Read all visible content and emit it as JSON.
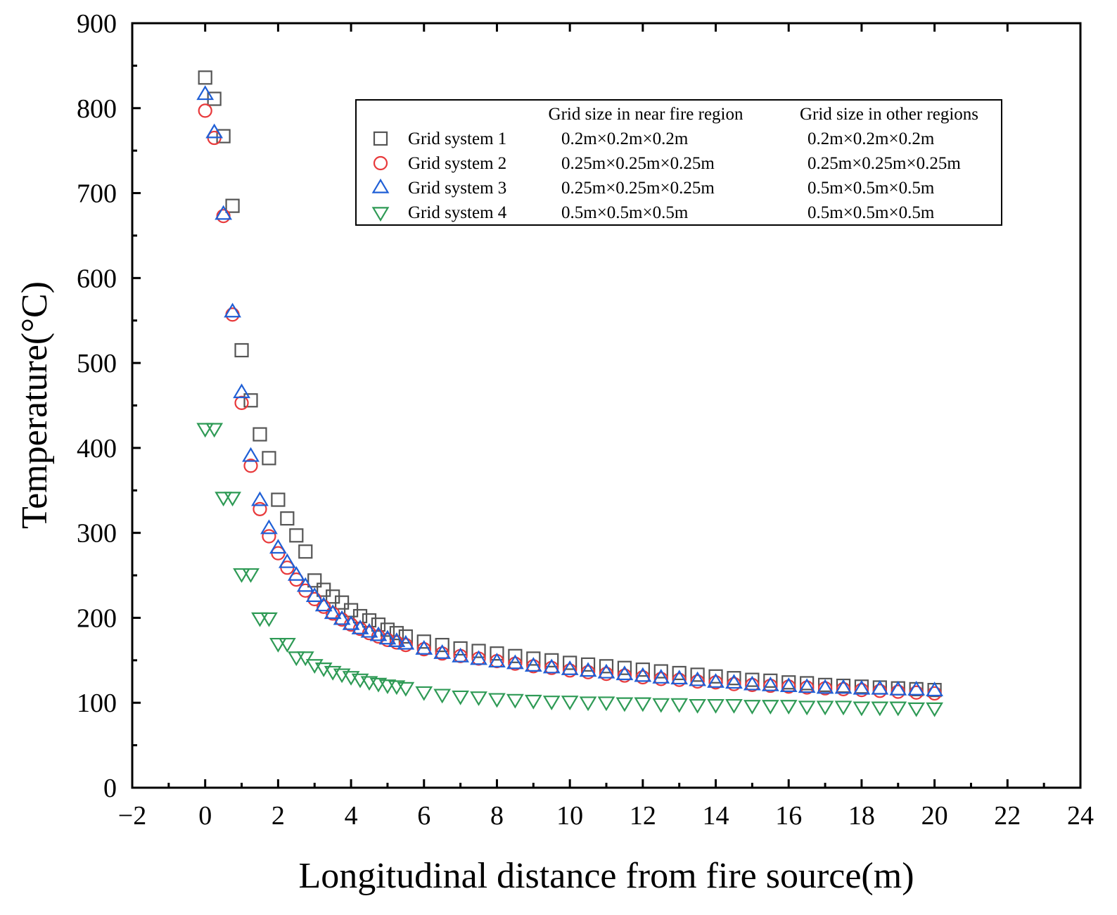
{
  "chart_data": {
    "type": "scatter",
    "title": "",
    "xlabel": "Longitudinal distance from fire source(m)",
    "ylabel": "Temperature(°C)",
    "xlim": [
      -2,
      24
    ],
    "ylim": [
      0,
      900
    ],
    "xticks": [
      -2,
      0,
      2,
      4,
      6,
      8,
      10,
      12,
      14,
      16,
      18,
      20,
      22,
      24
    ],
    "xtick_labels": [
      "−2",
      "0",
      "2",
      "4",
      "6",
      "8",
      "10",
      "12",
      "14",
      "16",
      "18",
      "20",
      "22",
      "24"
    ],
    "yticks": [
      0,
      100,
      200,
      300,
      400,
      500,
      600,
      700,
      800,
      900
    ],
    "ytick_labels": [
      "0",
      "100",
      "200",
      "300",
      "400",
      "500",
      "600",
      "700",
      "800",
      "900"
    ],
    "grid": false,
    "legend": {
      "position": "top-right",
      "header_near": "Grid size in near fire region",
      "header_other": "Grid size in other regions",
      "entries": [
        {
          "name": "Grid system 1",
          "near": "0.2m×0.2m×0.2m",
          "other": "0.2m×0.2m×0.2m"
        },
        {
          "name": "Grid system 2",
          "near": "0.25m×0.25m×0.25m",
          "other": "0.25m×0.25m×0.25m"
        },
        {
          "name": "Grid system 3",
          "near": "0.25m×0.25m×0.25m",
          "other": "0.5m×0.5m×0.5m"
        },
        {
          "name": "Grid system 4",
          "near": "0.5m×0.5m×0.5m",
          "other": "0.5m×0.5m×0.5m"
        }
      ]
    },
    "series": [
      {
        "name": "Grid system 1",
        "marker": "square",
        "color": "#555555",
        "x": [
          0,
          0.25,
          0.5,
          0.75,
          1,
          1.25,
          1.5,
          1.75,
          2,
          2.25,
          2.5,
          2.75,
          3,
          3.25,
          3.5,
          3.75,
          4,
          4.25,
          4.5,
          4.75,
          5,
          5.25,
          5.5,
          6,
          6.5,
          7,
          7.5,
          8,
          8.5,
          9,
          9.5,
          10,
          10.5,
          11,
          11.5,
          12,
          12.5,
          13,
          13.5,
          14,
          14.5,
          15,
          15.5,
          16,
          16.5,
          17,
          17.5,
          18,
          18.5,
          19,
          19.5,
          20
        ],
        "y": [
          836,
          811,
          767,
          685,
          515,
          456,
          416,
          388,
          339,
          317,
          297,
          278,
          244,
          233,
          225,
          218,
          209,
          202,
          197,
          192,
          186,
          182,
          178,
          172,
          168,
          164,
          161,
          158,
          155,
          152,
          150,
          147,
          145,
          143,
          141,
          139,
          137,
          135,
          133,
          131,
          129,
          127,
          126,
          124,
          123,
          121,
          120,
          119,
          118,
          117,
          116,
          115
        ]
      },
      {
        "name": "Grid system 2",
        "marker": "circle",
        "color": "#e8393b",
        "x": [
          0,
          0.25,
          0.5,
          0.75,
          1,
          1.25,
          1.5,
          1.75,
          2,
          2.25,
          2.5,
          2.75,
          3,
          3.25,
          3.5,
          3.75,
          4,
          4.25,
          4.5,
          4.75,
          5,
          5.25,
          5.5,
          6,
          6.5,
          7,
          7.5,
          8,
          8.5,
          9,
          9.5,
          10,
          10.5,
          11,
          11.5,
          12,
          12.5,
          13,
          13.5,
          14,
          14.5,
          15,
          15.5,
          16,
          16.5,
          17,
          17.5,
          18,
          18.5,
          19,
          19.5,
          20
        ],
        "y": [
          797,
          765,
          673,
          557,
          453,
          379,
          328,
          296,
          276,
          259,
          245,
          232,
          222,
          213,
          205,
          198,
          192,
          187,
          182,
          178,
          174,
          171,
          168,
          163,
          158,
          155,
          152,
          149,
          146,
          143,
          141,
          138,
          136,
          134,
          132,
          130,
          128,
          127,
          125,
          124,
          122,
          121,
          120,
          119,
          118,
          117,
          116,
          115,
          114,
          113,
          112,
          111
        ]
      },
      {
        "name": "Grid system 3",
        "marker": "triangle-up",
        "color": "#1f5fd6",
        "x": [
          0,
          0.25,
          0.5,
          0.75,
          1,
          1.25,
          1.5,
          1.75,
          2,
          2.25,
          2.5,
          2.75,
          3,
          3.25,
          3.5,
          3.75,
          4,
          4.25,
          4.5,
          4.75,
          5,
          5.25,
          5.5,
          6,
          6.5,
          7,
          7.5,
          8,
          8.5,
          9,
          9.5,
          10,
          10.5,
          11,
          11.5,
          12,
          12.5,
          13,
          13.5,
          14,
          14.5,
          15,
          15.5,
          16,
          16.5,
          17,
          17.5,
          18,
          18.5,
          19,
          19.5,
          20
        ],
        "y": [
          816,
          771,
          675,
          560,
          465,
          390,
          338,
          305,
          282,
          265,
          250,
          237,
          225,
          214,
          205,
          198,
          192,
          187,
          183,
          179,
          175,
          172,
          169,
          163,
          158,
          154,
          151,
          148,
          146,
          143,
          141,
          139,
          137,
          135,
          133,
          131,
          129,
          128,
          126,
          124,
          123,
          121,
          120,
          119,
          118,
          117,
          117,
          116,
          116,
          115,
          115,
          114
        ]
      },
      {
        "name": "Grid system 4",
        "marker": "triangle-down",
        "color": "#2e9a55",
        "x": [
          0,
          0.25,
          0.5,
          0.75,
          1,
          1.25,
          1.5,
          1.75,
          2,
          2.25,
          2.5,
          2.75,
          3,
          3.25,
          3.5,
          3.75,
          4,
          4.25,
          4.5,
          4.75,
          5,
          5.25,
          5.5,
          6,
          6.5,
          7,
          7.5,
          8,
          8.5,
          9,
          9.5,
          10,
          10.5,
          11,
          11.5,
          12,
          12.5,
          13,
          13.5,
          14,
          14.5,
          15,
          15.5,
          16,
          16.5,
          17,
          17.5,
          18,
          18.5,
          19,
          19.5,
          20
        ],
        "y": [
          423,
          423,
          342,
          342,
          252,
          252,
          200,
          200,
          170,
          170,
          154,
          154,
          145,
          141,
          137,
          134,
          131,
          128,
          125,
          123,
          121,
          120,
          118,
          113,
          110,
          108,
          107,
          105,
          104,
          103,
          102,
          102,
          101,
          101,
          100,
          100,
          99,
          99,
          98,
          98,
          98,
          97,
          97,
          97,
          96,
          96,
          96,
          95,
          95,
          95,
          94,
          94
        ]
      }
    ]
  }
}
